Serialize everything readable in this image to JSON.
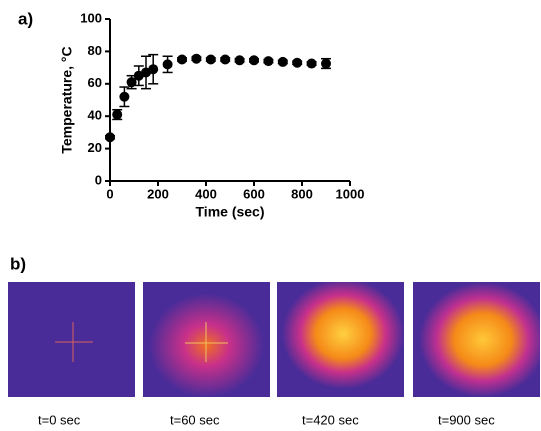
{
  "chart_data": {
    "type": "scatter",
    "panel_label": "a)",
    "x_label": "Time (sec)",
    "y_label": "Temperature, °C",
    "x": [
      0,
      30,
      60,
      90,
      120,
      150,
      180,
      240,
      300,
      360,
      420,
      480,
      540,
      600,
      660,
      720,
      780,
      840,
      900
    ],
    "series": [
      {
        "color": "#000000",
        "values": [
          27,
          41,
          52,
          61,
          65,
          67,
          69,
          72,
          75,
          75.5,
          75,
          75,
          74.5,
          74.5,
          74,
          73.5,
          73,
          72.5,
          72.5
        ],
        "errors": [
          1,
          3,
          6,
          4,
          6,
          10,
          9,
          5,
          1,
          1,
          1,
          1,
          1,
          1,
          1,
          1,
          1,
          1,
          3
        ]
      }
    ],
    "xlim": [
      0,
      1000
    ],
    "xticks": [
      0,
      200,
      400,
      600,
      800,
      1000
    ],
    "ylim": [
      0,
      100
    ],
    "yticks": [
      0,
      20,
      40,
      60,
      80,
      100
    ]
  },
  "panel_b": {
    "label": "b)",
    "captions": [
      "t=0 sec",
      "t=60 sec",
      "t=420 sec",
      "t=900 sec"
    ]
  }
}
